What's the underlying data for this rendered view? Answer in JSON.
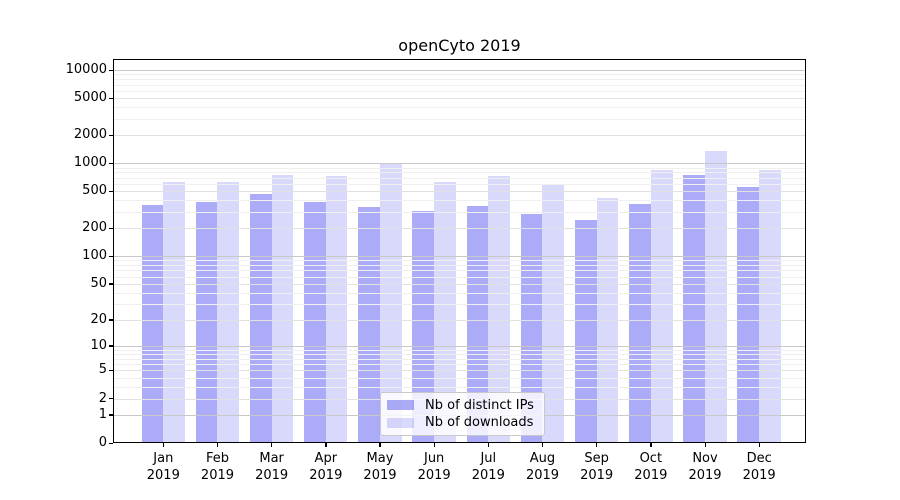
{
  "chart_data": {
    "type": "bar",
    "title": "openCyto 2019",
    "categories": [
      "Jan",
      "Feb",
      "Mar",
      "Apr",
      "May",
      "Jun",
      "Jul",
      "Aug",
      "Sep",
      "Oct",
      "Nov",
      "Dec"
    ],
    "category_year": "2019",
    "series": [
      {
        "name": "Nb of distinct IPs",
        "color": "rgba(102,102,240,0.55)",
        "values": [
          361,
          385,
          474,
          389,
          340,
          308,
          352,
          283,
          244,
          370,
          755,
          558
        ]
      },
      {
        "name": "Nb of downloads",
        "color": "rgba(102,102,240,0.25)",
        "values": [
          638,
          626,
          758,
          727,
          995,
          626,
          739,
          585,
          421,
          857,
          1358,
          849
        ]
      }
    ],
    "yscale": "log10(1+v)",
    "ylim": [
      0,
      13000
    ],
    "yticks": [
      0,
      1,
      2,
      5,
      10,
      20,
      50,
      100,
      200,
      500,
      1000,
      2000,
      5000,
      10000
    ],
    "grid": {
      "on": true,
      "major_color": "#c9c9c9",
      "mid_color": "#e2e2e2",
      "minor_color": "#efefef"
    },
    "legend": {
      "position": "bottom-center",
      "labels": [
        "Nb of distinct IPs",
        "Nb of downloads"
      ]
    },
    "axis_color": "#000000",
    "background_color": "#ffffff"
  }
}
